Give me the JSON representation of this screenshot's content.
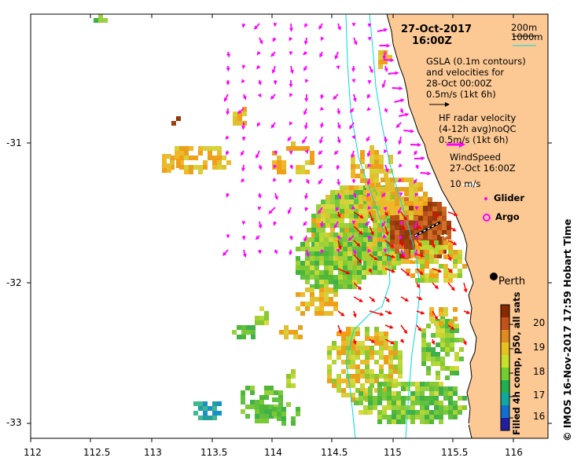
{
  "header": {
    "date": "27-Oct-2017",
    "time": "16:00Z"
  },
  "depth_legend": {
    "contour_200": "200m",
    "contour_1000": "1000m"
  },
  "legend": {
    "gsla_line1": "GSLA (0.1m contours)",
    "gsla_line2": "and velocities for",
    "gsla_line3": "28-Oct 00:00Z",
    "gsla_scale": "0.5m/s (1kt 6h)",
    "hf_line1": "HF radar velocity",
    "hf_line2": "(4-12h avg)noQC",
    "hf_scale": "0.5m/s (1kt 6h)",
    "wind_line1": "WindSpeed",
    "wind_line2": "27-Oct 16:00Z",
    "wind_scale": "10 m/s",
    "glider": "Glider",
    "argo": "Argo"
  },
  "place": {
    "city": "Perth"
  },
  "colorbar": {
    "label": "Filled 4h comp, p50, all sats",
    "ticks": [
      "20",
      "19",
      "18",
      "17",
      "16"
    ]
  },
  "credit": "© IMOS 16-Nov-2017 17:59 Hobart Time",
  "axes": {
    "x_ticks": [
      "112",
      "112.5",
      "113",
      "113.5",
      "114",
      "114.5",
      "115",
      "115.5",
      "116"
    ],
    "y_ticks": [
      "-31",
      "-32",
      "-33"
    ]
  },
  "colors": {
    "land": "#fcc995",
    "hf_arrow": "#ff00ff",
    "gsla_arrow": "#ff0000",
    "contour": "#00d8e0",
    "coast": "#000000"
  }
}
